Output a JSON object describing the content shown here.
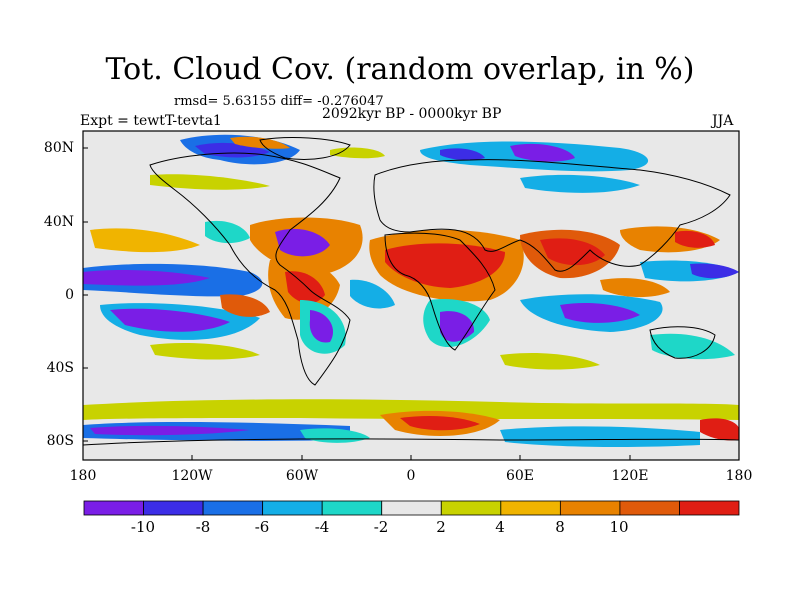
{
  "header": {
    "title": "Tot. Cloud Cov. (random overlap, in %)",
    "stats": "rmsd= 5.63155 diff= -0.276047",
    "period": "2092kyr BP - 0000kyr BP",
    "experiment": "Expt = tewtT-tevta1",
    "season": "JJA"
  },
  "map": {
    "x_ticks": [
      "180",
      "120W",
      "60W",
      "0",
      "60E",
      "120E",
      "180"
    ],
    "y_ticks": [
      "80N",
      "40N",
      "0",
      "40S",
      "80S"
    ]
  },
  "colorbar": {
    "labels": [
      "-10",
      "-8",
      "-6",
      "-4",
      "-2",
      "2",
      "4",
      "8",
      "10"
    ],
    "colors": [
      "#7a1ee6",
      "#3c2de6",
      "#1a6fe6",
      "#14aee6",
      "#1ed7c8",
      "#e8e8e8",
      "#c8d200",
      "#f0b400",
      "#e88200",
      "#e05a0a",
      "#e01e14"
    ]
  }
}
